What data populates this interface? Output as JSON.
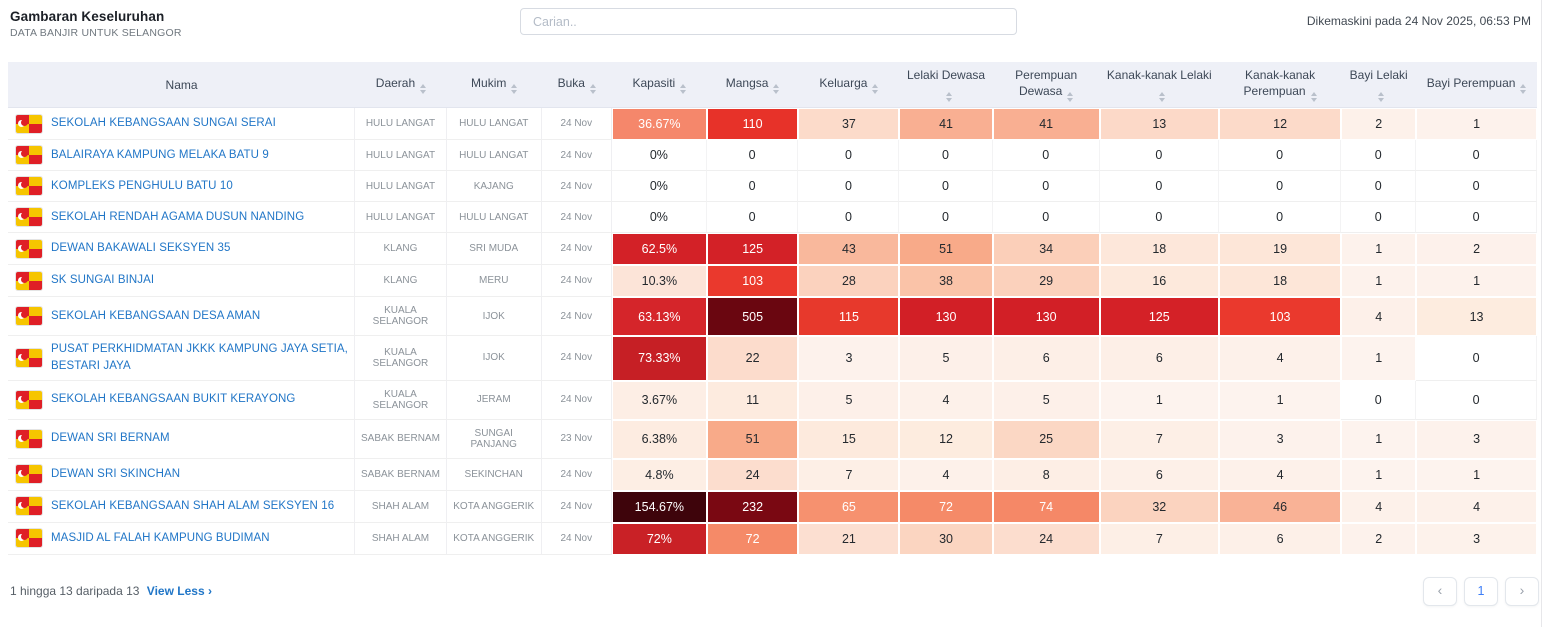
{
  "page": {
    "title": "Gambaran Keseluruhan",
    "subtitle": "DATA BANJIR UNTUK SELANGOR",
    "search": {
      "placeholder": "Carian.."
    },
    "last_updated": "Dikemaskini pada 24 Nov 2025, 06:53 PM"
  },
  "colors": {
    "link_blue": "#2176c7",
    "header_bg": "#eef0f7",
    "flag_red": "#df1f26",
    "flag_yellow": "#f6c500",
    "heat_extreme": "#3e040b",
    "heat_dark": "#7a0812",
    "heat_red": "#d32127",
    "heat_salmon": "#f58a68",
    "heat_light": "#fcdccc",
    "heat_faint": "#fdf1ea"
  },
  "table": {
    "columns": [
      {
        "key": "nama",
        "label": "Nama",
        "sortable": false
      },
      {
        "key": "daerah",
        "label": "Daerah",
        "sortable": true
      },
      {
        "key": "mukim",
        "label": "Mukim",
        "sortable": true
      },
      {
        "key": "buka",
        "label": "Buka",
        "sortable": true
      },
      {
        "key": "kapasiti",
        "label": "Kapasiti",
        "sortable": true
      },
      {
        "key": "mangsa",
        "label": "Mangsa",
        "sortable": true
      },
      {
        "key": "keluarga",
        "label": "Keluarga",
        "sortable": true
      },
      {
        "key": "lelaki-dewasa",
        "label": "Lelaki Dewasa",
        "sortable": true
      },
      {
        "key": "perempuan-dewasa",
        "label": "Perempuan Dewasa",
        "sortable": true
      },
      {
        "key": "kanak-kanak-lelaki",
        "label": "Kanak-kanak Lelaki",
        "sortable": true
      },
      {
        "key": "kanak-kanak-perempuan",
        "label": "Kanak-kanak Perempuan",
        "sortable": true
      },
      {
        "key": "bayi-lelaki",
        "label": "Bayi Lelaki",
        "sortable": true
      },
      {
        "key": "bayi-perempuan",
        "label": "Bayi Perempuan",
        "sortable": true
      }
    ],
    "rows": [
      {
        "name": "SEKOLAH KEBANGSAAN SUNGAI SERAI",
        "daerah": "HULU LANGAT",
        "mukim": "HULU LANGAT",
        "buka": "24 Nov",
        "metrics": [
          {
            "v": "36.67%",
            "bg": "#f5876b",
            "fg": "#ffffff"
          },
          {
            "v": "110",
            "bg": "#e73229",
            "fg": "#ffffff"
          },
          {
            "v": "37",
            "bg": "#fcdbca"
          },
          {
            "v": "41",
            "bg": "#f9af92"
          },
          {
            "v": "41",
            "bg": "#f9af92"
          },
          {
            "v": "13",
            "bg": "#fcd9c8"
          },
          {
            "v": "12",
            "bg": "#fcdac9"
          },
          {
            "v": "2",
            "bg": "#fdf1ea"
          },
          {
            "v": "1",
            "bg": "#fdf2ec"
          }
        ]
      },
      {
        "name": "BALAIRAYA KAMPUNG MELAKA BATU 9",
        "daerah": "HULU LANGAT",
        "mukim": "HULU LANGAT",
        "buka": "24 Nov",
        "metrics": [
          {
            "v": "0%",
            "bg": "#ffffff"
          },
          {
            "v": "0",
            "bg": "#ffffff"
          },
          {
            "v": "0",
            "bg": "#ffffff"
          },
          {
            "v": "0",
            "bg": "#ffffff"
          },
          {
            "v": "0",
            "bg": "#ffffff"
          },
          {
            "v": "0",
            "bg": "#ffffff"
          },
          {
            "v": "0",
            "bg": "#ffffff"
          },
          {
            "v": "0",
            "bg": "#ffffff"
          },
          {
            "v": "0",
            "bg": "#ffffff"
          }
        ]
      },
      {
        "name": "KOMPLEKS PENGHULU BATU 10",
        "daerah": "HULU LANGAT",
        "mukim": "KAJANG",
        "buka": "24 Nov",
        "metrics": [
          {
            "v": "0%",
            "bg": "#ffffff"
          },
          {
            "v": "0",
            "bg": "#ffffff"
          },
          {
            "v": "0",
            "bg": "#ffffff"
          },
          {
            "v": "0",
            "bg": "#ffffff"
          },
          {
            "v": "0",
            "bg": "#ffffff"
          },
          {
            "v": "0",
            "bg": "#ffffff"
          },
          {
            "v": "0",
            "bg": "#ffffff"
          },
          {
            "v": "0",
            "bg": "#ffffff"
          },
          {
            "v": "0",
            "bg": "#ffffff"
          }
        ]
      },
      {
        "name": "SEKOLAH RENDAH AGAMA DUSUN NANDING",
        "daerah": "HULU LANGAT",
        "mukim": "HULU LANGAT",
        "buka": "24 Nov",
        "metrics": [
          {
            "v": "0%",
            "bg": "#ffffff"
          },
          {
            "v": "0",
            "bg": "#ffffff"
          },
          {
            "v": "0",
            "bg": "#ffffff"
          },
          {
            "v": "0",
            "bg": "#ffffff"
          },
          {
            "v": "0",
            "bg": "#ffffff"
          },
          {
            "v": "0",
            "bg": "#ffffff"
          },
          {
            "v": "0",
            "bg": "#ffffff"
          },
          {
            "v": "0",
            "bg": "#ffffff"
          },
          {
            "v": "0",
            "bg": "#ffffff"
          }
        ]
      },
      {
        "name": "DEWAN BAKAWALI SEKSYEN 35",
        "daerah": "KLANG",
        "mukim": "SRI MUDA",
        "buka": "24 Nov",
        "metrics": [
          {
            "v": "62.5%",
            "bg": "#d32127",
            "fg": "#ffffff"
          },
          {
            "v": "125",
            "bg": "#d32127",
            "fg": "#ffffff"
          },
          {
            "v": "43",
            "bg": "#f9b89c"
          },
          {
            "v": "51",
            "bg": "#f8aa89"
          },
          {
            "v": "34",
            "bg": "#fbcfb9"
          },
          {
            "v": "18",
            "bg": "#fde7da"
          },
          {
            "v": "19",
            "bg": "#fde6d8"
          },
          {
            "v": "1",
            "bg": "#fdf2ec"
          },
          {
            "v": "2",
            "bg": "#fdf1eb"
          }
        ]
      },
      {
        "name": "SK SUNGAI BINJAI",
        "daerah": "KLANG",
        "mukim": "MERU",
        "buka": "24 Nov",
        "metrics": [
          {
            "v": "10.3%",
            "bg": "#fce4d8"
          },
          {
            "v": "103",
            "bg": "#ea392d",
            "fg": "#ffffff"
          },
          {
            "v": "28",
            "bg": "#fbd2be"
          },
          {
            "v": "38",
            "bg": "#fac3a8"
          },
          {
            "v": "29",
            "bg": "#fbd1bc"
          },
          {
            "v": "16",
            "bg": "#fde9dc"
          },
          {
            "v": "18",
            "bg": "#fde6d8"
          },
          {
            "v": "1",
            "bg": "#fdf2ec"
          },
          {
            "v": "1",
            "bg": "#fdf2ec"
          }
        ]
      },
      {
        "name": "SEKOLAH KEBANGSAAN DESA AMAN",
        "daerah": "KUALA SELANGOR",
        "mukim": "IJOK",
        "buka": "24 Nov",
        "metrics": [
          {
            "v": "63.13%",
            "bg": "#d5252a",
            "fg": "#ffffff"
          },
          {
            "v": "505",
            "bg": "#6a0610",
            "fg": "#ffffff"
          },
          {
            "v": "115",
            "bg": "#e7392c",
            "fg": "#ffffff"
          },
          {
            "v": "130",
            "bg": "#d21f26",
            "fg": "#ffffff"
          },
          {
            "v": "130",
            "bg": "#d21f26",
            "fg": "#ffffff"
          },
          {
            "v": "125",
            "bg": "#d42127",
            "fg": "#ffffff"
          },
          {
            "v": "103",
            "bg": "#ea392d",
            "fg": "#ffffff"
          },
          {
            "v": "4",
            "bg": "#fdf0e9"
          },
          {
            "v": "13",
            "bg": "#fdecdf"
          }
        ]
      },
      {
        "name": "PUSAT PERKHIDMATAN JKKK KAMPUNG JAYA SETIA, BESTARI JAYA",
        "daerah": "KUALA SELANGOR",
        "mukim": "IJOK",
        "buka": "24 Nov",
        "metrics": [
          {
            "v": "73.33%",
            "bg": "#c61f25",
            "fg": "#ffffff"
          },
          {
            "v": "22",
            "bg": "#fcdccc"
          },
          {
            "v": "3",
            "bg": "#fdf2ec"
          },
          {
            "v": "5",
            "bg": "#fdf0e9"
          },
          {
            "v": "6",
            "bg": "#fdefe7"
          },
          {
            "v": "6",
            "bg": "#fdefe7"
          },
          {
            "v": "4",
            "bg": "#fdf1ea"
          },
          {
            "v": "1",
            "bg": "#fdf3ee"
          },
          {
            "v": "0",
            "bg": "#ffffff"
          }
        ]
      },
      {
        "name": "SEKOLAH KEBANGSAAN BUKIT KERAYONG",
        "daerah": "KUALA SELANGOR",
        "mukim": "JERAM",
        "buka": "24 Nov",
        "metrics": [
          {
            "v": "3.67%",
            "bg": "#fdeee5"
          },
          {
            "v": "11",
            "bg": "#fdebdf"
          },
          {
            "v": "5",
            "bg": "#fdf0e9"
          },
          {
            "v": "4",
            "bg": "#fdf1ea"
          },
          {
            "v": "5",
            "bg": "#fdf0e9"
          },
          {
            "v": "1",
            "bg": "#fdf3ee"
          },
          {
            "v": "1",
            "bg": "#fdf3ee"
          },
          {
            "v": "0",
            "bg": "#ffffff"
          },
          {
            "v": "0",
            "bg": "#ffffff"
          }
        ]
      },
      {
        "name": "DEWAN SRI BERNAM",
        "daerah": "SABAK BERNAM",
        "mukim": "SUNGAI PANJANG",
        "buka": "23 Nov",
        "metrics": [
          {
            "v": "6.38%",
            "bg": "#fdece1"
          },
          {
            "v": "51",
            "bg": "#f8aa89"
          },
          {
            "v": "15",
            "bg": "#fdeadd"
          },
          {
            "v": "12",
            "bg": "#fdecdf"
          },
          {
            "v": "25",
            "bg": "#fbd7c4"
          },
          {
            "v": "7",
            "bg": "#fdefe6"
          },
          {
            "v": "3",
            "bg": "#fdf2ec"
          },
          {
            "v": "1",
            "bg": "#fdf3ee"
          },
          {
            "v": "3",
            "bg": "#fdf2ec"
          }
        ]
      },
      {
        "name": "DEWAN SRI SKINCHAN",
        "daerah": "SABAK BERNAM",
        "mukim": "SEKINCHAN",
        "buka": "24 Nov",
        "metrics": [
          {
            "v": "4.8%",
            "bg": "#fdeee4"
          },
          {
            "v": "24",
            "bg": "#fcddce"
          },
          {
            "v": "7",
            "bg": "#fdefe6"
          },
          {
            "v": "4",
            "bg": "#fdf1ea"
          },
          {
            "v": "8",
            "bg": "#fdeee5"
          },
          {
            "v": "6",
            "bg": "#fdf0e8"
          },
          {
            "v": "4",
            "bg": "#fdf1ea"
          },
          {
            "v": "1",
            "bg": "#fdf3ee"
          },
          {
            "v": "1",
            "bg": "#fdf3ee"
          }
        ]
      },
      {
        "name": "SEKOLAH KEBANGSAAN SHAH ALAM SEKSYEN 16",
        "daerah": "SHAH ALAM",
        "mukim": "KOTA ANGGERIK",
        "buka": "24 Nov",
        "metrics": [
          {
            "v": "154.67%",
            "bg": "#3e040b",
            "fg": "#ffffff"
          },
          {
            "v": "232",
            "bg": "#7a0812",
            "fg": "#ffffff"
          },
          {
            "v": "65",
            "bg": "#f6916f",
            "fg": "#ffffff"
          },
          {
            "v": "72",
            "bg": "#f58a68",
            "fg": "#ffffff"
          },
          {
            "v": "74",
            "bg": "#f58867",
            "fg": "#ffffff"
          },
          {
            "v": "32",
            "bg": "#fbd3bf"
          },
          {
            "v": "46",
            "bg": "#f9b296"
          },
          {
            "v": "4",
            "bg": "#fdf1ea"
          },
          {
            "v": "4",
            "bg": "#fdf1ea"
          }
        ]
      },
      {
        "name": "MASJID AL FALAH KAMPUNG BUDIMAN",
        "daerah": "SHAH ALAM",
        "mukim": "KOTA ANGGERIK",
        "buka": "24 Nov",
        "metrics": [
          {
            "v": "72%",
            "bg": "#c92126",
            "fg": "#ffffff"
          },
          {
            "v": "72",
            "bg": "#f58a68",
            "fg": "#ffffff"
          },
          {
            "v": "21",
            "bg": "#fcdfd1"
          },
          {
            "v": "30",
            "bg": "#fbd5c1"
          },
          {
            "v": "24",
            "bg": "#fcddce"
          },
          {
            "v": "7",
            "bg": "#fdefe6"
          },
          {
            "v": "6",
            "bg": "#fdf0e8"
          },
          {
            "v": "2",
            "bg": "#fdf2ec"
          },
          {
            "v": "3",
            "bg": "#fdf2eb"
          }
        ]
      }
    ]
  },
  "footer": {
    "summary": "1 hingga 13 daripada 13",
    "view_less_label": "View Less ›",
    "pagination": {
      "prev": "‹",
      "current": "1",
      "next": "›"
    }
  }
}
